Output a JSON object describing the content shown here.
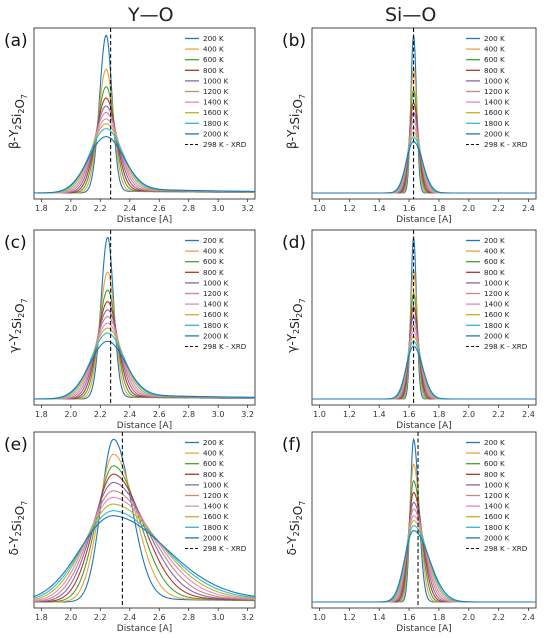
{
  "column_titles": [
    "Y—O",
    "Si—O"
  ],
  "colors": [
    "#1f77b4",
    "#e8a33c",
    "#4a9e36",
    "#b5332b",
    "#8a63b3",
    "#c9877f",
    "#e289c4",
    "#bbb52a",
    "#33b8d1"
  ],
  "chart_data": [
    {
      "type": "line",
      "panel": "(a)",
      "ylabel_parts": [
        "β",
        "Y",
        "2",
        "Si",
        "2",
        "O",
        "7"
      ],
      "xlabel": "Distance [A]",
      "xlim": [
        1.75,
        3.25
      ],
      "ylim": [
        0,
        1
      ],
      "xticks": [
        "1.8",
        "2.0",
        "2.2",
        "2.4",
        "2.6",
        "2.8",
        "3.0",
        "3.2"
      ],
      "peak_x": 2.24,
      "xrd": 2.27,
      "left_width": 0.045,
      "right_width": 0.04,
      "tail_frac": 0.02,
      "series": [
        {
          "name": "200 K",
          "peak": 0.98
        },
        {
          "name": "400 K",
          "peak": 0.77
        },
        {
          "name": "600 K",
          "peak": 0.66
        },
        {
          "name": "800 K",
          "peak": 0.59
        },
        {
          "name": "1000 K",
          "peak": 0.54
        },
        {
          "name": "1200 K",
          "peak": 0.5
        },
        {
          "name": "1400 K",
          "peak": 0.46
        },
        {
          "name": "1600 K",
          "peak": 0.43
        },
        {
          "name": "1800 K",
          "peak": 0.4
        },
        {
          "name": "2000 K",
          "peak": 0.35
        }
      ],
      "xrd_label": "298 K - XRD"
    },
    {
      "type": "line",
      "panel": "(b)",
      "ylabel_parts": [
        "β",
        "Y",
        "2",
        "Si",
        "2",
        "O",
        "7"
      ],
      "xlabel": "Distance [A]",
      "xlim": [
        0.95,
        2.45
      ],
      "ylim": [
        0,
        1
      ],
      "xticks": [
        "1.0",
        "1.2",
        "1.4",
        "1.6",
        "1.8",
        "2.0",
        "2.2",
        "2.4"
      ],
      "peak_x": 1.63,
      "xrd": 1.63,
      "left_width": 0.018,
      "right_width": 0.02,
      "tail_frac": 0.0,
      "series": [
        {
          "name": "200 K",
          "peak": 0.98
        },
        {
          "name": "400 K",
          "peak": 0.78
        },
        {
          "name": "600 K",
          "peak": 0.64
        },
        {
          "name": "800 K",
          "peak": 0.56
        },
        {
          "name": "1000 K",
          "peak": 0.5
        },
        {
          "name": "1200 K",
          "peak": 0.45
        },
        {
          "name": "1400 K",
          "peak": 0.41
        },
        {
          "name": "1600 K",
          "peak": 0.38
        },
        {
          "name": "1800 K",
          "peak": 0.35
        },
        {
          "name": "2000 K",
          "peak": 0.32
        }
      ],
      "xrd_label": "298 K - XRD"
    },
    {
      "type": "line",
      "panel": "(c)",
      "ylabel_parts": [
        "γ",
        "Y",
        "2",
        "Si",
        "2",
        "O",
        "7"
      ],
      "xlabel": "Distance [A]",
      "xlim": [
        1.75,
        3.25
      ],
      "ylim": [
        0,
        1
      ],
      "xticks": [
        "1.8",
        "2.0",
        "2.2",
        "2.4",
        "2.6",
        "2.8",
        "3.0",
        "3.2"
      ],
      "peak_x": 2.25,
      "xrd": 2.27,
      "left_width": 0.045,
      "right_width": 0.04,
      "tail_frac": 0.02,
      "series": [
        {
          "name": "200 K",
          "peak": 0.98
        },
        {
          "name": "400 K",
          "peak": 0.77
        },
        {
          "name": "600 K",
          "peak": 0.66
        },
        {
          "name": "800 K",
          "peak": 0.59
        },
        {
          "name": "1000 K",
          "peak": 0.54
        },
        {
          "name": "1200 K",
          "peak": 0.5
        },
        {
          "name": "1400 K",
          "peak": 0.46
        },
        {
          "name": "1600 K",
          "peak": 0.43
        },
        {
          "name": "1800 K",
          "peak": 0.4
        },
        {
          "name": "2000 K",
          "peak": 0.35
        }
      ],
      "xrd_label": "298 K - XRD"
    },
    {
      "type": "line",
      "panel": "(d)",
      "ylabel_parts": [
        "γ",
        "Y",
        "2",
        "Si",
        "2",
        "O",
        "7"
      ],
      "xlabel": "Distance [A]",
      "xlim": [
        0.95,
        2.45
      ],
      "ylim": [
        0,
        1
      ],
      "xticks": [
        "1.0",
        "1.2",
        "1.4",
        "1.6",
        "1.8",
        "2.0",
        "2.2",
        "2.4"
      ],
      "peak_x": 1.63,
      "xrd": 1.63,
      "left_width": 0.018,
      "right_width": 0.02,
      "tail_frac": 0.0,
      "series": [
        {
          "name": "200 K",
          "peak": 0.98
        },
        {
          "name": "400 K",
          "peak": 0.78
        },
        {
          "name": "600 K",
          "peak": 0.64
        },
        {
          "name": "800 K",
          "peak": 0.56
        },
        {
          "name": "1000 K",
          "peak": 0.5
        },
        {
          "name": "1200 K",
          "peak": 0.45
        },
        {
          "name": "1400 K",
          "peak": 0.41
        },
        {
          "name": "1600 K",
          "peak": 0.38
        },
        {
          "name": "1800 K",
          "peak": 0.35
        },
        {
          "name": "2000 K",
          "peak": 0.32
        }
      ],
      "xrd_label": "298 K - XRD"
    },
    {
      "type": "line",
      "panel": "(e)",
      "ylabel_parts": [
        "δ",
        "Y",
        "2",
        "Si",
        "2",
        "O",
        "7"
      ],
      "xlabel": "Distance [A]",
      "xlim": [
        1.75,
        3.25
      ],
      "ylim": [
        0,
        1
      ],
      "xticks": [
        "1.8",
        "2.0",
        "2.2",
        "2.4",
        "2.6",
        "2.8",
        "3.0",
        "3.2"
      ],
      "peak_x": 2.29,
      "xrd": 2.35,
      "left_width": 0.085,
      "right_width": 0.12,
      "tail_frac": 0.04,
      "series": [
        {
          "name": "200 K",
          "peak": 0.98
        },
        {
          "name": "400 K",
          "peak": 0.89
        },
        {
          "name": "600 K",
          "peak": 0.82
        },
        {
          "name": "800 K",
          "peak": 0.77
        },
        {
          "name": "1000 K",
          "peak": 0.72
        },
        {
          "name": "1200 K",
          "peak": 0.67
        },
        {
          "name": "1400 K",
          "peak": 0.63
        },
        {
          "name": "1600 K",
          "peak": 0.59
        },
        {
          "name": "1800 K",
          "peak": 0.55
        },
        {
          "name": "2000 K",
          "peak": 0.52
        }
      ],
      "xrd_label": "298 K - XRD"
    },
    {
      "type": "line",
      "panel": "(f)",
      "ylabel_parts": [
        "δ",
        "Y",
        "2",
        "Si",
        "2",
        "O",
        "7"
      ],
      "xlabel": "Distance [A]",
      "xlim": [
        0.95,
        2.45
      ],
      "ylim": [
        0,
        1
      ],
      "xticks": [
        "1.0",
        "1.2",
        "1.4",
        "1.6",
        "1.8",
        "2.0",
        "2.2",
        "2.4"
      ],
      "peak_x": 1.63,
      "xrd": 1.66,
      "left_width": 0.022,
      "right_width": 0.035,
      "tail_frac": 0.0,
      "series": [
        {
          "name": "200 K",
          "peak": 0.98
        },
        {
          "name": "400 K",
          "peak": 0.83
        },
        {
          "name": "600 K",
          "peak": 0.73
        },
        {
          "name": "800 K",
          "peak": 0.66
        },
        {
          "name": "1000 K",
          "peak": 0.6
        },
        {
          "name": "1200 K",
          "peak": 0.56
        },
        {
          "name": "1400 K",
          "peak": 0.52
        },
        {
          "name": "1600 K",
          "peak": 0.49
        },
        {
          "name": "1800 K",
          "peak": 0.46
        },
        {
          "name": "2000 K",
          "peak": 0.43
        }
      ],
      "xrd_label": "298 K - XRD"
    }
  ]
}
